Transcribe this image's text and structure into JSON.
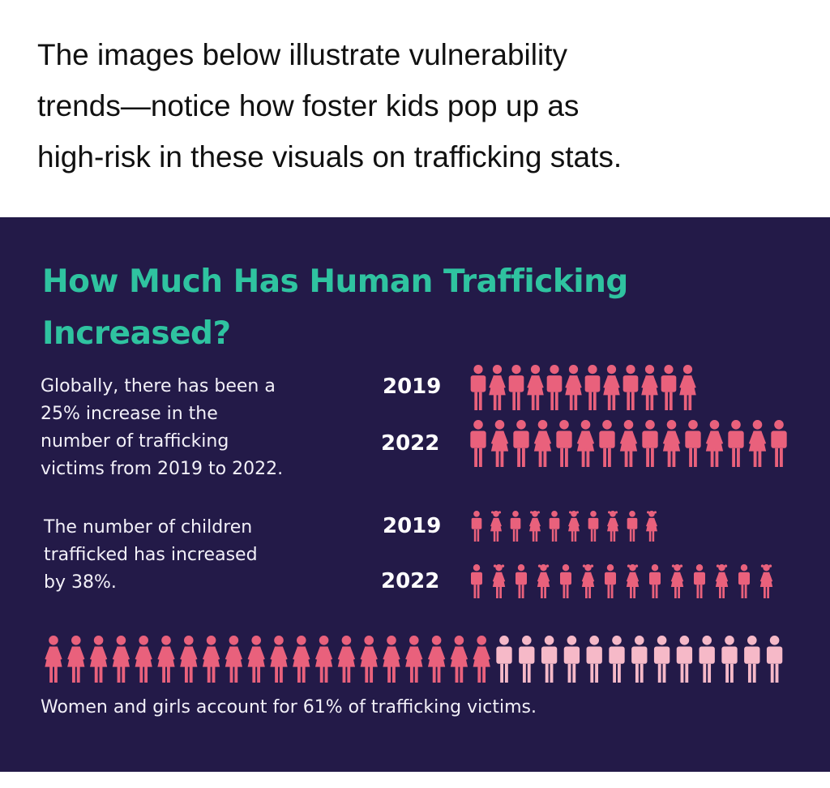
{
  "intro": {
    "lines": [
      "The images below illustrate vulnerability",
      "trends—notice how foster kids pop up as",
      "high-risk in these visuals on trafficking stats."
    ]
  },
  "infographic": {
    "title_lines": [
      "How Much Has Human Trafficking",
      "Increased?"
    ],
    "victims": {
      "text_lines": [
        "Globally, there has been a",
        "25% increase in the",
        "number of trafficking",
        "victims from 2019 to 2022."
      ],
      "rows": [
        {
          "year": "2019",
          "icons": 12
        },
        {
          "year": "2022",
          "icons": 15
        }
      ]
    },
    "children": {
      "text_lines": [
        "The number of children",
        "trafficked has increased",
        "by 38%."
      ],
      "rows": [
        {
          "year": "2019",
          "icons": 10
        },
        {
          "year": "2022",
          "icons": 14
        }
      ]
    },
    "women": {
      "highlighted_icons": 20,
      "other_icons": 13,
      "text": "Women and girls account for 61% of trafficking victims."
    }
  }
}
